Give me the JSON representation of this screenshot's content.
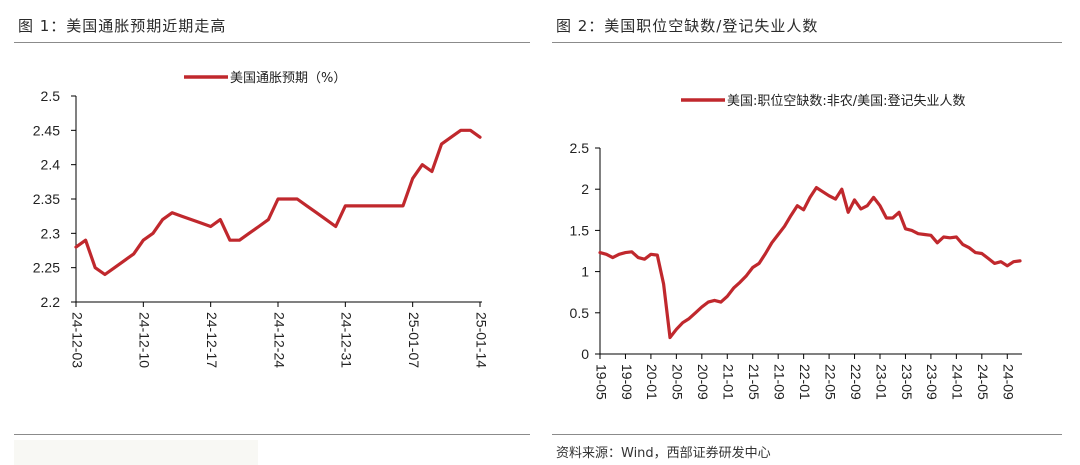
{
  "headers": {
    "left": "图 1：美国通胀预期近期走高",
    "right": "图 2：美国职位空缺数/登记失业人数"
  },
  "source": "资料来源：Wind，西部证券研发中心",
  "colors": {
    "line": "#c0282d",
    "axis": "#000000",
    "rule": "#8b8b8b"
  },
  "chart_data": [
    {
      "type": "line",
      "title": "",
      "legend": "美国通胀预期（%）",
      "legend_position": "top-center",
      "xlabel": "",
      "ylabel": "",
      "ylim": [
        2.2,
        2.5
      ],
      "yticks": [
        "2.2",
        "2.25",
        "2.3",
        "2.35",
        "2.4",
        "2.45",
        "2.5"
      ],
      "xticks": [
        "24-12-03",
        "24-12-10",
        "24-12-17",
        "24-12-24",
        "24-12-31",
        "25-01-07",
        "25-01-14"
      ],
      "xtick_index": [
        0,
        7,
        14,
        21,
        28,
        35,
        42
      ],
      "values": [
        2.28,
        2.29,
        2.25,
        2.24,
        2.25,
        2.26,
        2.27,
        2.29,
        2.3,
        2.32,
        2.33,
        2.325,
        2.32,
        2.315,
        2.31,
        2.32,
        2.29,
        2.29,
        2.3,
        2.31,
        2.32,
        2.35,
        2.35,
        2.35,
        2.34,
        2.33,
        2.32,
        2.31,
        2.34,
        2.34,
        2.34,
        2.34,
        2.34,
        2.34,
        2.34,
        2.38,
        2.4,
        2.39,
        2.43,
        2.44,
        2.45,
        2.45,
        2.44
      ]
    },
    {
      "type": "line",
      "title": "",
      "legend": "美国:职位空缺数:非农/美国:登记失业人数",
      "legend_position": "top-center",
      "xlabel": "",
      "ylabel": "",
      "ylim": [
        0,
        2.5
      ],
      "yticks": [
        "0",
        "0.5",
        "1",
        "1.5",
        "2",
        "2.5"
      ],
      "xticks": [
        "19-05",
        "19-09",
        "20-01",
        "20-05",
        "20-09",
        "21-01",
        "21-05",
        "21-09",
        "22-01",
        "22-05",
        "22-09",
        "23-01",
        "23-05",
        "23-09",
        "24-01",
        "24-05",
        "24-09"
      ],
      "xtick_index": [
        0,
        4,
        8,
        12,
        16,
        20,
        24,
        28,
        32,
        36,
        40,
        44,
        48,
        52,
        56,
        60,
        64
      ],
      "values": [
        1.23,
        1.21,
        1.17,
        1.21,
        1.23,
        1.24,
        1.17,
        1.15,
        1.21,
        1.2,
        0.85,
        0.2,
        0.3,
        0.38,
        0.43,
        0.5,
        0.57,
        0.63,
        0.65,
        0.63,
        0.7,
        0.8,
        0.87,
        0.95,
        1.05,
        1.1,
        1.22,
        1.35,
        1.45,
        1.55,
        1.68,
        1.8,
        1.75,
        1.9,
        2.02,
        1.97,
        1.92,
        1.88,
        2.0,
        1.72,
        1.87,
        1.76,
        1.8,
        1.9,
        1.8,
        1.65,
        1.65,
        1.72,
        1.52,
        1.5,
        1.46,
        1.45,
        1.44,
        1.35,
        1.42,
        1.41,
        1.42,
        1.33,
        1.29,
        1.23,
        1.22,
        1.16,
        1.1,
        1.12,
        1.07,
        1.12,
        1.13
      ]
    }
  ]
}
